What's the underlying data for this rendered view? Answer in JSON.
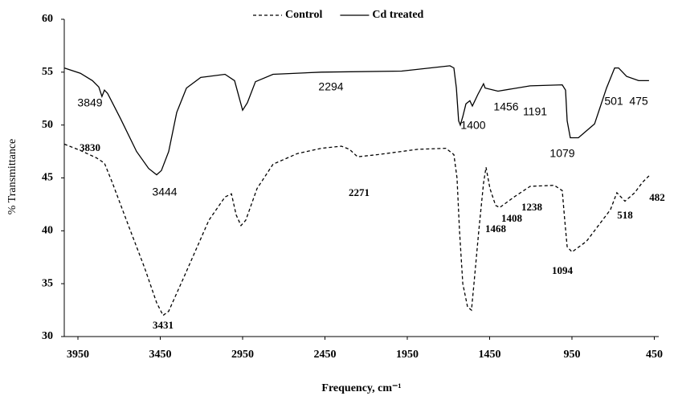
{
  "chart_data": {
    "type": "line",
    "x_label": "Frequency, cm⁻¹",
    "y_label": "% Transmittance",
    "xlim": [
      4033,
      423
    ],
    "xticks": [
      3950,
      3450,
      2950,
      2450,
      1950,
      1450,
      950,
      450
    ],
    "ylim": [
      30,
      60
    ],
    "yticks": [
      30,
      35,
      40,
      45,
      50,
      55,
      60
    ],
    "grid": false,
    "legend": "top",
    "series": [
      {
        "name": "Control",
        "color": "#000000",
        "linestyle": "dashed",
        "x": [
          4033,
          3935,
          3838,
          3789,
          3740,
          3643,
          3545,
          3472,
          3433,
          3399,
          3301,
          3155,
          3057,
          3018,
          2989,
          2960,
          2931,
          2862,
          2765,
          2618,
          2472,
          2350,
          2301,
          2252,
          2130,
          1887,
          1716,
          1667,
          1648,
          1633,
          1613,
          1584,
          1560,
          1545,
          1516,
          1487,
          1472,
          1448,
          1414,
          1389,
          1301,
          1204,
          1057,
          1009,
          994,
          979,
          950,
          862,
          716,
          677,
          628,
          569,
          521,
          482
        ],
        "values": [
          48.2,
          47.6,
          46.9,
          46.4,
          44.5,
          40.5,
          36.5,
          33.2,
          32.0,
          32.4,
          35.8,
          41.0,
          43.2,
          43.5,
          41.5,
          40.5,
          41.0,
          44.0,
          46.3,
          47.3,
          47.8,
          48.0,
          47.7,
          47.0,
          47.2,
          47.7,
          47.8,
          47.2,
          45.0,
          40.0,
          35.0,
          32.8,
          32.5,
          35.0,
          40.0,
          44.5,
          46.0,
          44.0,
          42.4,
          42.2,
          43.2,
          44.2,
          44.3,
          43.8,
          41.0,
          38.5,
          38.0,
          39.0,
          42.0,
          43.6,
          42.8,
          43.6,
          44.6,
          45.2
        ]
      },
      {
        "name": "Cd treated",
        "color": "#000000",
        "linestyle": "solid",
        "x": [
          4033,
          3935,
          3862,
          3823,
          3804,
          3789,
          3770,
          3691,
          3594,
          3521,
          3472,
          3443,
          3399,
          3350,
          3291,
          3204,
          3057,
          2999,
          2950,
          2921,
          2872,
          2765,
          2472,
          1984,
          1691,
          1667,
          1652,
          1638,
          1628,
          1613,
          1594,
          1570,
          1555,
          1521,
          1487,
          1477,
          1399,
          1204,
          1009,
          989,
          979,
          960,
          911,
          813,
          740,
          691,
          667,
          618,
          545,
          482
        ],
        "values": [
          55.4,
          54.9,
          54.2,
          53.6,
          52.7,
          53.3,
          53.0,
          50.6,
          47.5,
          45.9,
          45.3,
          45.7,
          47.5,
          51.2,
          53.5,
          54.5,
          54.8,
          54.2,
          51.4,
          52.1,
          54.1,
          54.8,
          55.0,
          55.1,
          55.6,
          55.4,
          53.5,
          50.4,
          50.0,
          50.8,
          52.0,
          52.3,
          51.8,
          52.9,
          53.9,
          53.5,
          53.2,
          53.7,
          53.8,
          53.3,
          50.4,
          48.8,
          48.8,
          50.1,
          53.5,
          55.4,
          55.4,
          54.6,
          54.2,
          54.2
        ]
      }
    ],
    "annotations": [
      "3849",
      "3444",
      "2294",
      "1400",
      "1456",
      "1191",
      "1079",
      "501",
      "475",
      "3830",
      "3431",
      "2271",
      "1468",
      "1408",
      "1238",
      "1094",
      "518",
      "482"
    ]
  }
}
